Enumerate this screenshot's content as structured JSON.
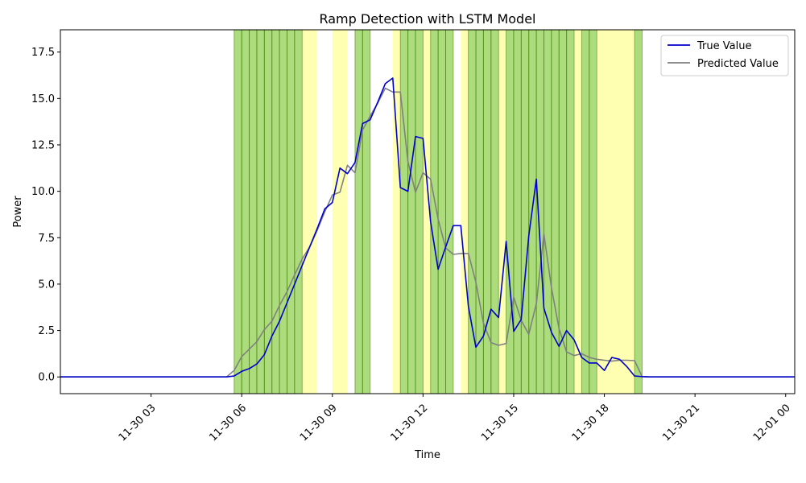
{
  "chart_data": {
    "type": "line",
    "title": "Ramp Detection with LSTM Model",
    "xlabel": "Time",
    "ylabel": "Power",
    "x_range_hours": [
      0,
      24.3
    ],
    "ylim": [
      -0.9,
      18.7
    ],
    "grid": false,
    "legend_position": "top-right",
    "x_ticks": [
      {
        "hour": 3,
        "label": "11-30 03"
      },
      {
        "hour": 6,
        "label": "11-30 06"
      },
      {
        "hour": 9,
        "label": "11-30 09"
      },
      {
        "hour": 12,
        "label": "11-30 12"
      },
      {
        "hour": 15,
        "label": "11-30 15"
      },
      {
        "hour": 18,
        "label": "11-30 18"
      },
      {
        "hour": 21,
        "label": "11-30 21"
      },
      {
        "hour": 24,
        "label": "12-01 00"
      }
    ],
    "y_ticks": [
      {
        "value": 0.0,
        "label": "0.0"
      },
      {
        "value": 2.5,
        "label": "2.5"
      },
      {
        "value": 5.0,
        "label": "5.0"
      },
      {
        "value": 7.5,
        "label": "7.5"
      },
      {
        "value": 10.0,
        "label": "10.0"
      },
      {
        "value": 12.5,
        "label": "12.5"
      },
      {
        "value": 15.0,
        "label": "15.0"
      },
      {
        "value": 17.5,
        "label": "17.5"
      }
    ],
    "ramp_bands": {
      "green": [
        [
          5.75,
          6.0
        ],
        [
          6.0,
          6.25
        ],
        [
          6.25,
          6.5
        ],
        [
          6.5,
          6.75
        ],
        [
          6.75,
          7.0
        ],
        [
          7.0,
          7.25
        ],
        [
          7.25,
          7.5
        ],
        [
          7.5,
          7.75
        ],
        [
          7.75,
          8.0
        ],
        [
          9.75,
          10.0
        ],
        [
          10.0,
          10.25
        ],
        [
          11.25,
          11.5
        ],
        [
          11.5,
          11.75
        ],
        [
          11.75,
          12.0
        ],
        [
          12.25,
          12.5
        ],
        [
          12.5,
          12.75
        ],
        [
          12.75,
          13.0
        ],
        [
          13.5,
          13.75
        ],
        [
          13.75,
          14.0
        ],
        [
          14.0,
          14.25
        ],
        [
          14.25,
          14.5
        ],
        [
          14.75,
          15.0
        ],
        [
          15.0,
          15.25
        ],
        [
          15.25,
          15.5
        ],
        [
          15.5,
          15.75
        ],
        [
          15.75,
          16.0
        ],
        [
          16.0,
          16.25
        ],
        [
          16.25,
          16.5
        ],
        [
          16.5,
          16.75
        ],
        [
          16.75,
          17.0
        ],
        [
          17.25,
          17.5
        ],
        [
          17.5,
          17.75
        ],
        [
          19.0,
          19.25
        ]
      ],
      "yellow": [
        [
          8.0,
          8.25
        ],
        [
          8.25,
          8.5
        ],
        [
          9.0,
          9.25
        ],
        [
          9.25,
          9.5
        ],
        [
          11.0,
          11.25
        ],
        [
          12.0,
          12.25
        ],
        [
          13.25,
          13.5
        ],
        [
          14.5,
          14.75
        ],
        [
          17.0,
          17.25
        ],
        [
          17.75,
          18.0
        ],
        [
          18.0,
          18.25
        ],
        [
          18.25,
          18.5
        ],
        [
          18.5,
          18.75
        ],
        [
          18.75,
          19.0
        ]
      ]
    },
    "series": [
      {
        "name": "True Value",
        "color": "#0000cc",
        "x": [
          0,
          0.25,
          0.5,
          0.75,
          1.0,
          1.25,
          1.5,
          1.75,
          2.0,
          2.25,
          2.5,
          2.75,
          3.0,
          3.25,
          3.5,
          3.75,
          4.0,
          4.25,
          4.5,
          4.75,
          5.0,
          5.25,
          5.5,
          5.75,
          6.0,
          6.25,
          6.5,
          6.75,
          7.0,
          7.25,
          7.5,
          7.75,
          8.0,
          8.25,
          8.5,
          8.75,
          9.0,
          9.25,
          9.5,
          9.75,
          10.0,
          10.25,
          10.5,
          10.75,
          11.0,
          11.25,
          11.5,
          11.75,
          12.0,
          12.25,
          12.5,
          12.75,
          13.0,
          13.25,
          13.5,
          13.75,
          14.0,
          14.25,
          14.5,
          14.75,
          15.0,
          15.25,
          15.5,
          15.75,
          16.0,
          16.25,
          16.5,
          16.75,
          17.0,
          17.25,
          17.5,
          17.75,
          18.0,
          18.25,
          18.5,
          18.75,
          19.0,
          19.25,
          19.5,
          19.75,
          20.0,
          20.25,
          20.5,
          20.75,
          21.0,
          21.25,
          21.5,
          21.75,
          22.0,
          22.25,
          22.5,
          22.75,
          23.0,
          23.25,
          23.5,
          23.75,
          24.0,
          24.3
        ],
        "values": [
          0,
          0,
          0,
          0,
          0,
          0,
          0,
          0,
          0,
          0,
          0,
          0,
          0,
          0,
          0,
          0,
          0,
          0,
          0,
          0,
          0,
          0,
          0,
          0.05,
          0.3,
          0.45,
          0.7,
          1.2,
          2.2,
          3.0,
          4.0,
          5.0,
          6.0,
          7.0,
          8.0,
          9.05,
          9.4,
          11.25,
          10.95,
          11.55,
          13.65,
          13.85,
          14.8,
          15.8,
          16.1,
          10.2,
          10.0,
          12.95,
          12.85,
          8.35,
          5.8,
          7.0,
          8.15,
          8.15,
          3.8,
          1.6,
          2.2,
          3.65,
          3.2,
          7.3,
          2.45,
          3.1,
          7.6,
          10.65,
          3.7,
          2.4,
          1.65,
          2.5,
          2.0,
          1.05,
          0.75,
          0.75,
          0.35,
          1.05,
          0.95,
          0.55,
          0.05,
          0.02,
          0,
          0,
          0,
          0,
          0,
          0,
          0,
          0,
          0,
          0,
          0,
          0,
          0,
          0,
          0,
          0,
          0,
          0,
          0,
          0
        ]
      },
      {
        "name": "Predicted Value",
        "color": "#808080",
        "x": [
          0,
          0.25,
          0.5,
          0.75,
          1.0,
          1.25,
          1.5,
          1.75,
          2.0,
          2.25,
          2.5,
          2.75,
          3.0,
          3.25,
          3.5,
          3.75,
          4.0,
          4.25,
          4.5,
          4.75,
          5.0,
          5.25,
          5.5,
          5.75,
          6.0,
          6.25,
          6.5,
          6.75,
          7.0,
          7.25,
          7.5,
          7.75,
          8.0,
          8.25,
          8.5,
          8.75,
          9.0,
          9.25,
          9.5,
          9.75,
          10.0,
          10.25,
          10.5,
          10.75,
          11.0,
          11.25,
          11.5,
          11.75,
          12.0,
          12.25,
          12.5,
          12.75,
          13.0,
          13.25,
          13.5,
          13.75,
          14.0,
          14.25,
          14.5,
          14.75,
          15.0,
          15.25,
          15.5,
          15.75,
          16.0,
          16.25,
          16.5,
          16.75,
          17.0,
          17.25,
          17.5,
          17.75,
          18.0,
          18.25,
          18.5,
          18.75,
          19.0,
          19.25,
          19.5,
          19.75,
          20.0,
          20.25,
          20.5,
          20.75,
          21.0,
          21.25,
          21.5,
          21.75,
          22.0,
          22.25,
          22.5,
          22.75,
          23.0,
          23.25,
          23.5,
          23.75,
          24.0,
          24.3
        ],
        "values": [
          0,
          0,
          0,
          0,
          0,
          0,
          0,
          0,
          0,
          0,
          0,
          0,
          0,
          0,
          0,
          0,
          0,
          0,
          0,
          0,
          0,
          0,
          0,
          0.35,
          1.1,
          1.5,
          1.9,
          2.55,
          3.0,
          3.85,
          4.6,
          5.5,
          6.35,
          7.0,
          7.9,
          8.9,
          9.8,
          9.95,
          11.4,
          11.0,
          13.3,
          14.05,
          14.75,
          15.55,
          15.35,
          15.35,
          11.6,
          9.95,
          11.0,
          10.65,
          8.5,
          6.95,
          6.6,
          6.65,
          6.65,
          5.1,
          2.9,
          1.85,
          1.7,
          1.8,
          4.3,
          3.05,
          2.3,
          3.95,
          7.7,
          4.8,
          2.6,
          1.35,
          1.15,
          1.25,
          1.05,
          0.95,
          0.9,
          0.85,
          0.9,
          0.9,
          0.88,
          0.02,
          0,
          0,
          0,
          0,
          0,
          0,
          0,
          0,
          0,
          0,
          0,
          0,
          0,
          0,
          0,
          0,
          0,
          0,
          0,
          0
        ]
      }
    ]
  }
}
